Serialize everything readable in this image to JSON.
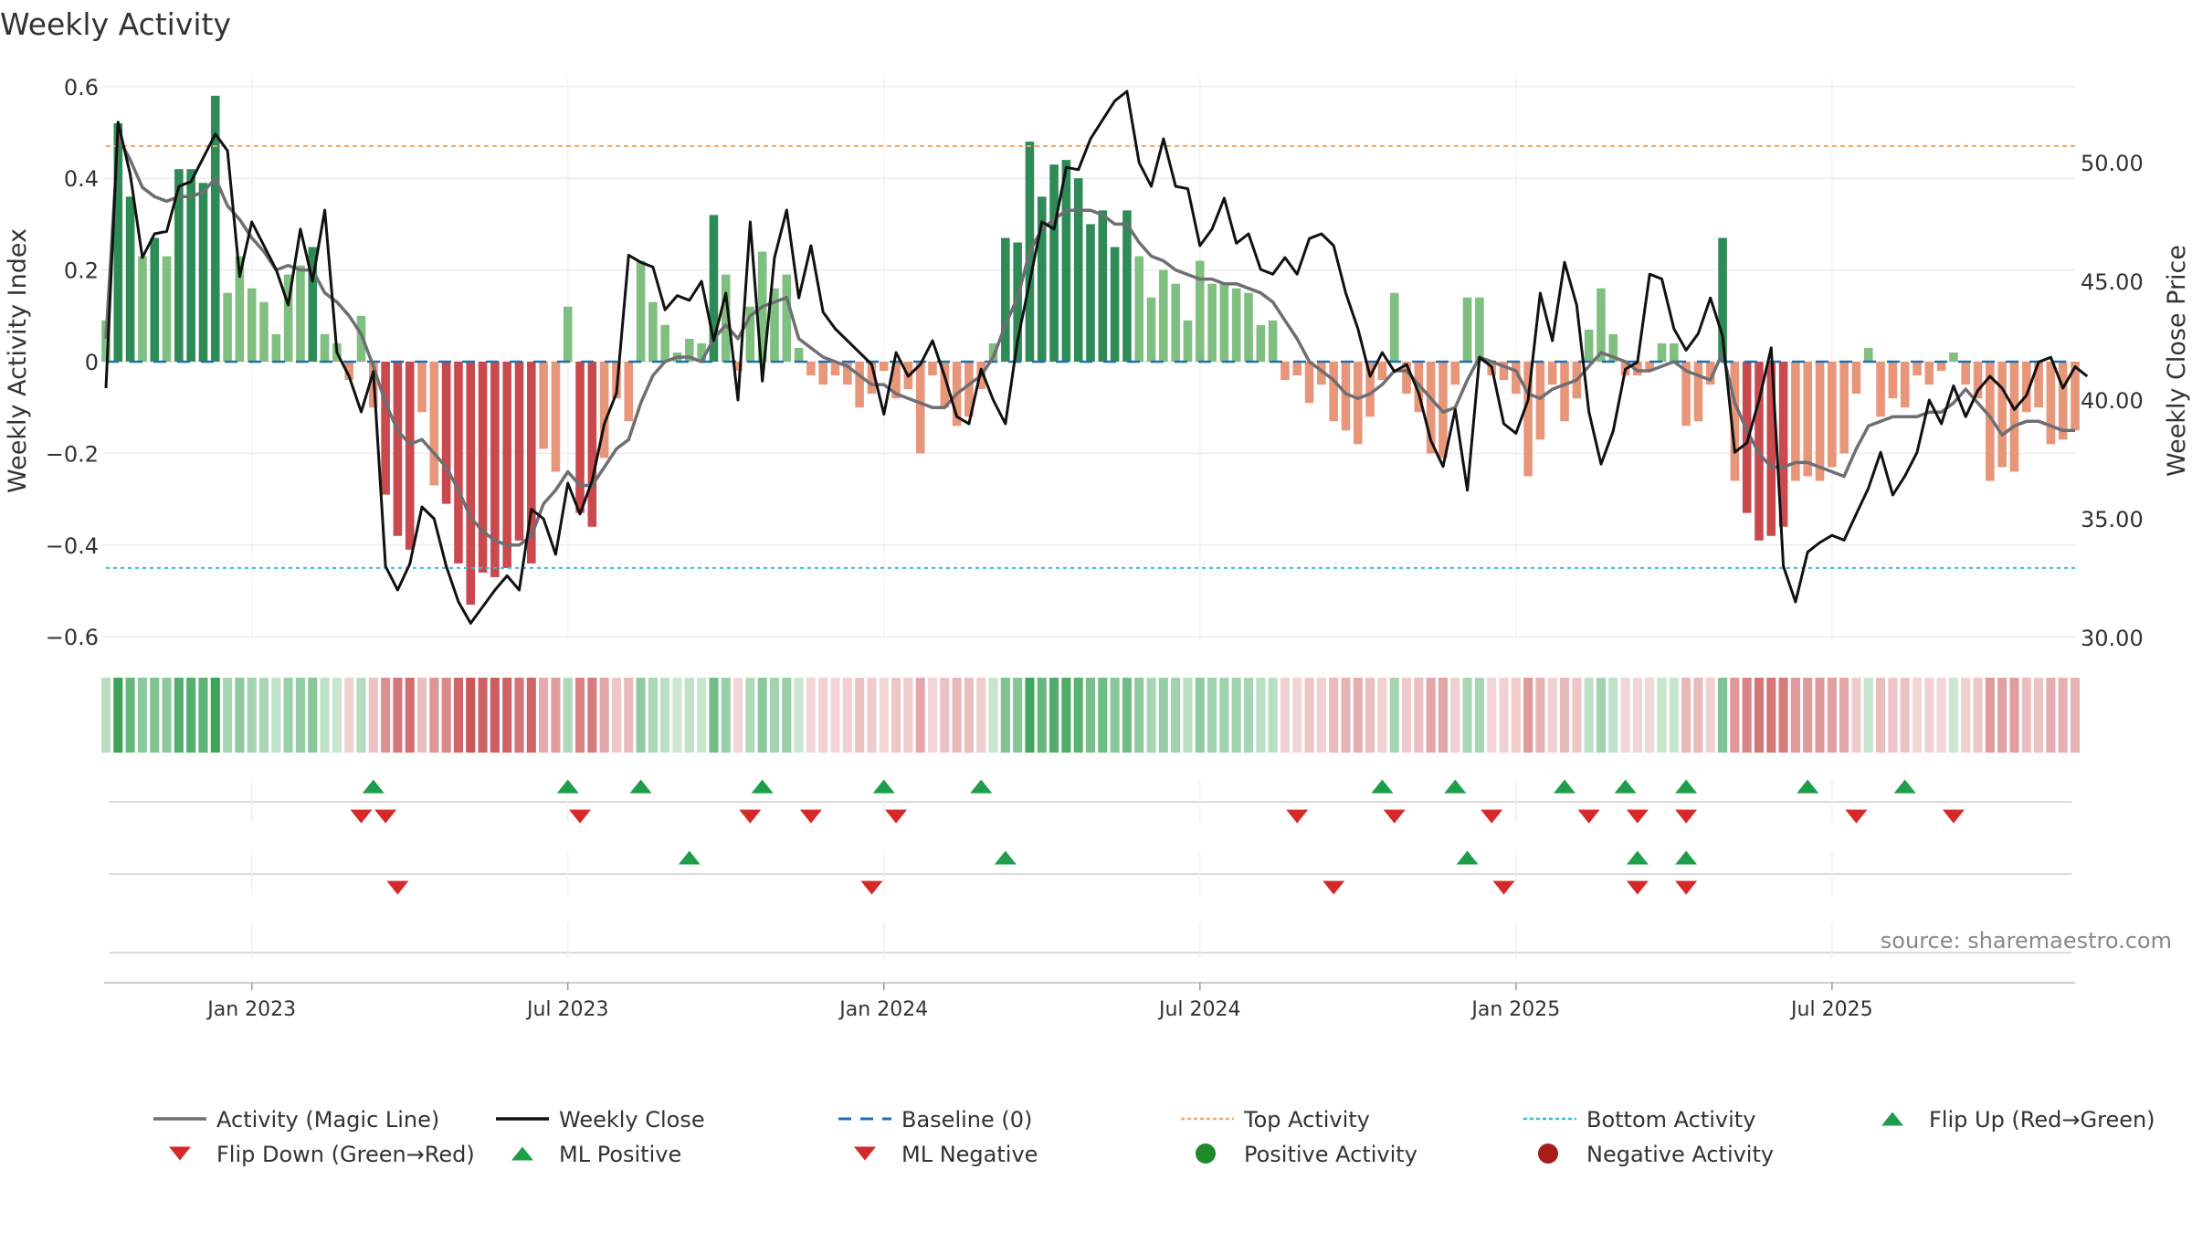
{
  "title": "Weekly Activity",
  "source": "source: sharemaestro.com",
  "colors": {
    "magic": "#6e6e73",
    "close": "#111111",
    "baseline": "#1f6fb2",
    "top": "#f0a868",
    "bottom": "#38bcd8",
    "up": "#1e9e4a",
    "down": "#d62828",
    "pos_dark": "#2e8b57",
    "pos_light": "#7fbf7f",
    "neg_dark": "#c9494f",
    "neg_light": "#e8967a"
  },
  "chart_data": {
    "type": "bar",
    "title": "Weekly Activity",
    "ylabel": "Weekly Activity Index",
    "y2label": "Weekly Close Price",
    "ylim": [
      -0.62,
      0.6
    ],
    "y2lim": [
      30,
      53
    ],
    "yticks": [
      0.6,
      0.4,
      0.2,
      0,
      -0.2,
      -0.4,
      -0.6
    ],
    "ytick_labels": [
      "0.6",
      "0.4",
      "0.2",
      "0",
      "−0.2",
      "−0.4",
      "−0.6"
    ],
    "y2ticks": [
      50,
      45,
      40,
      35,
      30
    ],
    "y2tick_labels": [
      "50.00",
      "45.00",
      "40.00",
      "35.00",
      "30.00"
    ],
    "top_activity": 0.47,
    "bottom_activity": -0.45,
    "baseline": 0,
    "xrange": [
      "2022-10-07",
      "2025-09-12"
    ],
    "xticks": [
      {
        "label": "Jan 2023",
        "week": 12
      },
      {
        "label": "Jul 2023",
        "week": 38
      },
      {
        "label": "Jan 2024",
        "week": 64
      },
      {
        "label": "Jul 2024",
        "week": 90
      },
      {
        "label": "Jan 2025",
        "week": 116
      },
      {
        "label": "Jul 2025",
        "week": 142
      }
    ],
    "activity": [
      0.09,
      0.52,
      0.36,
      0.23,
      0.27,
      0.23,
      0.42,
      0.42,
      0.39,
      0.58,
      0.15,
      0.23,
      0.16,
      0.13,
      0.06,
      0.19,
      0.21,
      0.25,
      0.06,
      0.04,
      -0.04,
      0.1,
      -0.1,
      -0.29,
      -0.38,
      -0.41,
      -0.11,
      -0.27,
      -0.31,
      -0.44,
      -0.53,
      -0.46,
      -0.47,
      -0.45,
      -0.39,
      -0.44,
      -0.19,
      -0.24,
      0.12,
      -0.33,
      -0.36,
      -0.21,
      -0.08,
      -0.13,
      0.22,
      0.13,
      0.08,
      0.02,
      0.05,
      0.04,
      0.32,
      0.19,
      -0.02,
      0.12,
      0.24,
      0.16,
      0.19,
      0.03,
      -0.03,
      -0.05,
      -0.03,
      -0.05,
      -0.1,
      -0.07,
      -0.02,
      -0.08,
      -0.06,
      -0.2,
      -0.03,
      -0.1,
      -0.14,
      -0.12,
      -0.06,
      0.04,
      0.27,
      0.26,
      0.48,
      0.36,
      0.43,
      0.44,
      0.4,
      0.3,
      0.33,
      0.25,
      0.33,
      0.23,
      0.14,
      0.2,
      0.17,
      0.09,
      0.22,
      0.17,
      0.17,
      0.16,
      0.15,
      0.08,
      0.09,
      -0.04,
      -0.03,
      -0.09,
      -0.05,
      -0.13,
      -0.15,
      -0.18,
      -0.12,
      -0.04,
      0.15,
      -0.07,
      -0.11,
      -0.2,
      -0.21,
      -0.05,
      0.14,
      0.14,
      -0.03,
      -0.04,
      -0.07,
      -0.25,
      -0.17,
      -0.05,
      -0.13,
      -0.08,
      0.07,
      0.16,
      0.06,
      -0.03,
      -0.03,
      -0.02,
      0.04,
      0.04,
      -0.14,
      -0.13,
      -0.05,
      0.27,
      -0.26,
      -0.33,
      -0.39,
      -0.38,
      -0.36,
      -0.26,
      -0.25,
      -0.26,
      -0.23,
      -0.2,
      -0.07,
      0.03,
      -0.12,
      -0.08,
      -0.1,
      -0.03,
      -0.05,
      -0.02,
      0.02,
      -0.05,
      -0.08,
      -0.26,
      -0.23,
      -0.24,
      -0.11,
      -0.1,
      -0.18,
      -0.17,
      -0.15
    ],
    "magic_line": [
      0.05,
      0.49,
      0.44,
      0.38,
      0.36,
      0.35,
      0.36,
      0.36,
      0.37,
      0.4,
      0.34,
      0.31,
      0.27,
      0.24,
      0.2,
      0.21,
      0.2,
      0.2,
      0.15,
      0.13,
      0.1,
      0.06,
      -0.01,
      -0.09,
      -0.15,
      -0.18,
      -0.17,
      -0.2,
      -0.23,
      -0.28,
      -0.34,
      -0.37,
      -0.39,
      -0.4,
      -0.4,
      -0.38,
      -0.31,
      -0.28,
      -0.24,
      -0.27,
      -0.27,
      -0.23,
      -0.19,
      -0.17,
      -0.09,
      -0.03,
      0.0,
      0.01,
      0.01,
      0.0,
      0.05,
      0.08,
      0.05,
      0.1,
      0.12,
      0.13,
      0.14,
      0.05,
      0.03,
      0.01,
      0.0,
      -0.01,
      -0.03,
      -0.05,
      -0.05,
      -0.07,
      -0.08,
      -0.09,
      -0.1,
      -0.1,
      -0.07,
      -0.05,
      -0.03,
      0.01,
      0.08,
      0.14,
      0.24,
      0.29,
      0.31,
      0.33,
      0.33,
      0.33,
      0.32,
      0.3,
      0.3,
      0.26,
      0.23,
      0.22,
      0.2,
      0.19,
      0.18,
      0.18,
      0.17,
      0.17,
      0.16,
      0.15,
      0.13,
      0.09,
      0.05,
      0.0,
      -0.02,
      -0.04,
      -0.07,
      -0.08,
      -0.07,
      -0.05,
      -0.02,
      -0.02,
      -0.05,
      -0.08,
      -0.11,
      -0.1,
      -0.04,
      0.01,
      0.0,
      -0.01,
      -0.02,
      -0.07,
      -0.08,
      -0.06,
      -0.05,
      -0.04,
      -0.01,
      0.02,
      0.01,
      0.0,
      -0.02,
      -0.02,
      -0.01,
      0.0,
      -0.02,
      -0.03,
      -0.04,
      0.02,
      -0.09,
      -0.15,
      -0.2,
      -0.23,
      -0.23,
      -0.22,
      -0.22,
      -0.23,
      -0.24,
      -0.25,
      -0.19,
      -0.14,
      -0.13,
      -0.12,
      -0.12,
      -0.12,
      -0.11,
      -0.11,
      -0.09,
      -0.06,
      -0.09,
      -0.12,
      -0.16,
      -0.14,
      -0.13,
      -0.13,
      -0.14,
      -0.15,
      -0.15
    ],
    "weekly_close": [
      40.5,
      51.7,
      49.5,
      46.0,
      47.0,
      47.1,
      49.0,
      49.2,
      50.2,
      51.2,
      50.5,
      45.2,
      47.5,
      46.5,
      45.5,
      44.0,
      47.2,
      45.0,
      48.0,
      42.0,
      41.0,
      39.5,
      41.2,
      33.0,
      32.0,
      33.1,
      35.5,
      35.0,
      33.0,
      31.5,
      30.6,
      31.3,
      32.0,
      32.6,
      32.0,
      35.4,
      35.0,
      33.5,
      36.5,
      35.2,
      36.6,
      39.0,
      40.3,
      46.1,
      45.8,
      45.6,
      43.8,
      44.4,
      44.2,
      45.0,
      42.5,
      44.5,
      40.0,
      47.5,
      40.8,
      46.0,
      48.0,
      44.3,
      46.5,
      43.7,
      43.0,
      42.5,
      42.0,
      41.5,
      39.4,
      42.0,
      41.0,
      41.5,
      42.5,
      41.0,
      39.3,
      39.0,
      41.3,
      40.0,
      39.0,
      42.5,
      45.0,
      47.5,
      47.2,
      49.8,
      49.7,
      51.0,
      51.8,
      52.6,
      53.0,
      50.0,
      49.0,
      51.0,
      49.0,
      48.9,
      46.5,
      47.2,
      48.5,
      46.6,
      47.0,
      45.5,
      45.3,
      46.0,
      45.3,
      46.8,
      47.0,
      46.5,
      44.5,
      43.0,
      41.0,
      42.0,
      41.2,
      41.5,
      40.3,
      38.3,
      37.2,
      39.6,
      36.2,
      41.8,
      41.4,
      39.0,
      38.6,
      40.0,
      44.5,
      42.5,
      45.8,
      44.0,
      39.5,
      37.3,
      38.7,
      41.3,
      41.6,
      45.3,
      45.1,
      43.0,
      42.1,
      42.8,
      44.3,
      42.7,
      37.8,
      38.2,
      40.0,
      42.2,
      33.0,
      31.5,
      33.6,
      34.0,
      34.3,
      34.1,
      35.2,
      36.3,
      37.8,
      36.0,
      36.8,
      37.8,
      40.0,
      39.0,
      40.6,
      39.3,
      40.4,
      41.0,
      40.5,
      39.6,
      40.2,
      41.6,
      41.8,
      40.5,
      41.4,
      41.0
    ],
    "flip_up_weeks": [
      22,
      38,
      44,
      54,
      64,
      72,
      105,
      111,
      120,
      125,
      130,
      140,
      148
    ],
    "flip_down_weeks": [
      21,
      23,
      39,
      53,
      58,
      65,
      98,
      106,
      114,
      122,
      126,
      130,
      144,
      152
    ],
    "ml_positive_weeks": [
      48,
      74,
      112,
      126,
      130
    ],
    "ml_negative_weeks": [
      24,
      63,
      101,
      115,
      126,
      130
    ]
  },
  "legend": [
    {
      "label": "Activity (Magic Line)",
      "kind": "line",
      "color": "#6e6e73"
    },
    {
      "label": "Weekly Close",
      "kind": "line",
      "color": "#111111"
    },
    {
      "label": "Baseline (0)",
      "kind": "dash",
      "color": "#1f6fb2"
    },
    {
      "label": "Top Activity",
      "kind": "dot",
      "color": "#f0a868"
    },
    {
      "label": "Bottom Activity",
      "kind": "dot",
      "color": "#38bcd8"
    },
    {
      "label": "Flip Up (Red→Green)",
      "kind": "tri-up",
      "color": "#1e9e4a"
    },
    {
      "label": "Flip Down (Green→Red)",
      "kind": "tri-down",
      "color": "#d62828"
    },
    {
      "label": "ML Positive",
      "kind": "tri-up",
      "color": "#1e9e4a"
    },
    {
      "label": "ML Negative",
      "kind": "tri-down",
      "color": "#d62828"
    },
    {
      "label": "Positive Activity",
      "kind": "circle",
      "color": "#1e8a2a"
    },
    {
      "label": "Negative Activity",
      "kind": "circle",
      "color": "#a81c1c"
    }
  ]
}
